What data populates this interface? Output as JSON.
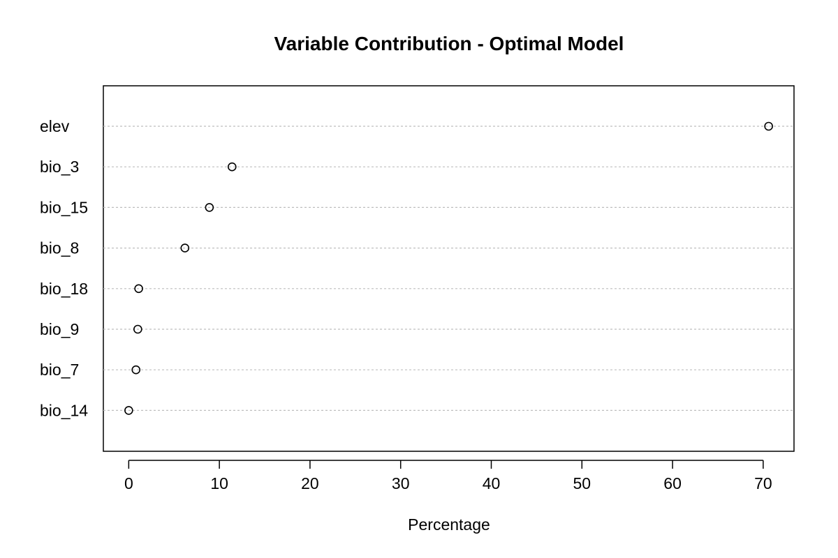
{
  "chart_data": {
    "type": "scatter",
    "title": "Variable Contribution - Optimal Model",
    "xlabel": "Percentage",
    "ylabel": "",
    "categories": [
      "elev",
      "bio_3",
      "bio_15",
      "bio_8",
      "bio_18",
      "bio_9",
      "bio_7",
      "bio_14"
    ],
    "values": [
      70.6,
      11.4,
      8.9,
      6.2,
      1.1,
      1.0,
      0.8,
      0.0
    ],
    "xlim": [
      -2.8,
      73.4
    ],
    "xticks": [
      0,
      10,
      20,
      30,
      40,
      50,
      60,
      70
    ],
    "grid": true,
    "grid_style": "dotted horizontal",
    "legend": "none",
    "colors": {
      "points": "#000000",
      "grid": "#bebebe",
      "axes": "#000000"
    }
  }
}
